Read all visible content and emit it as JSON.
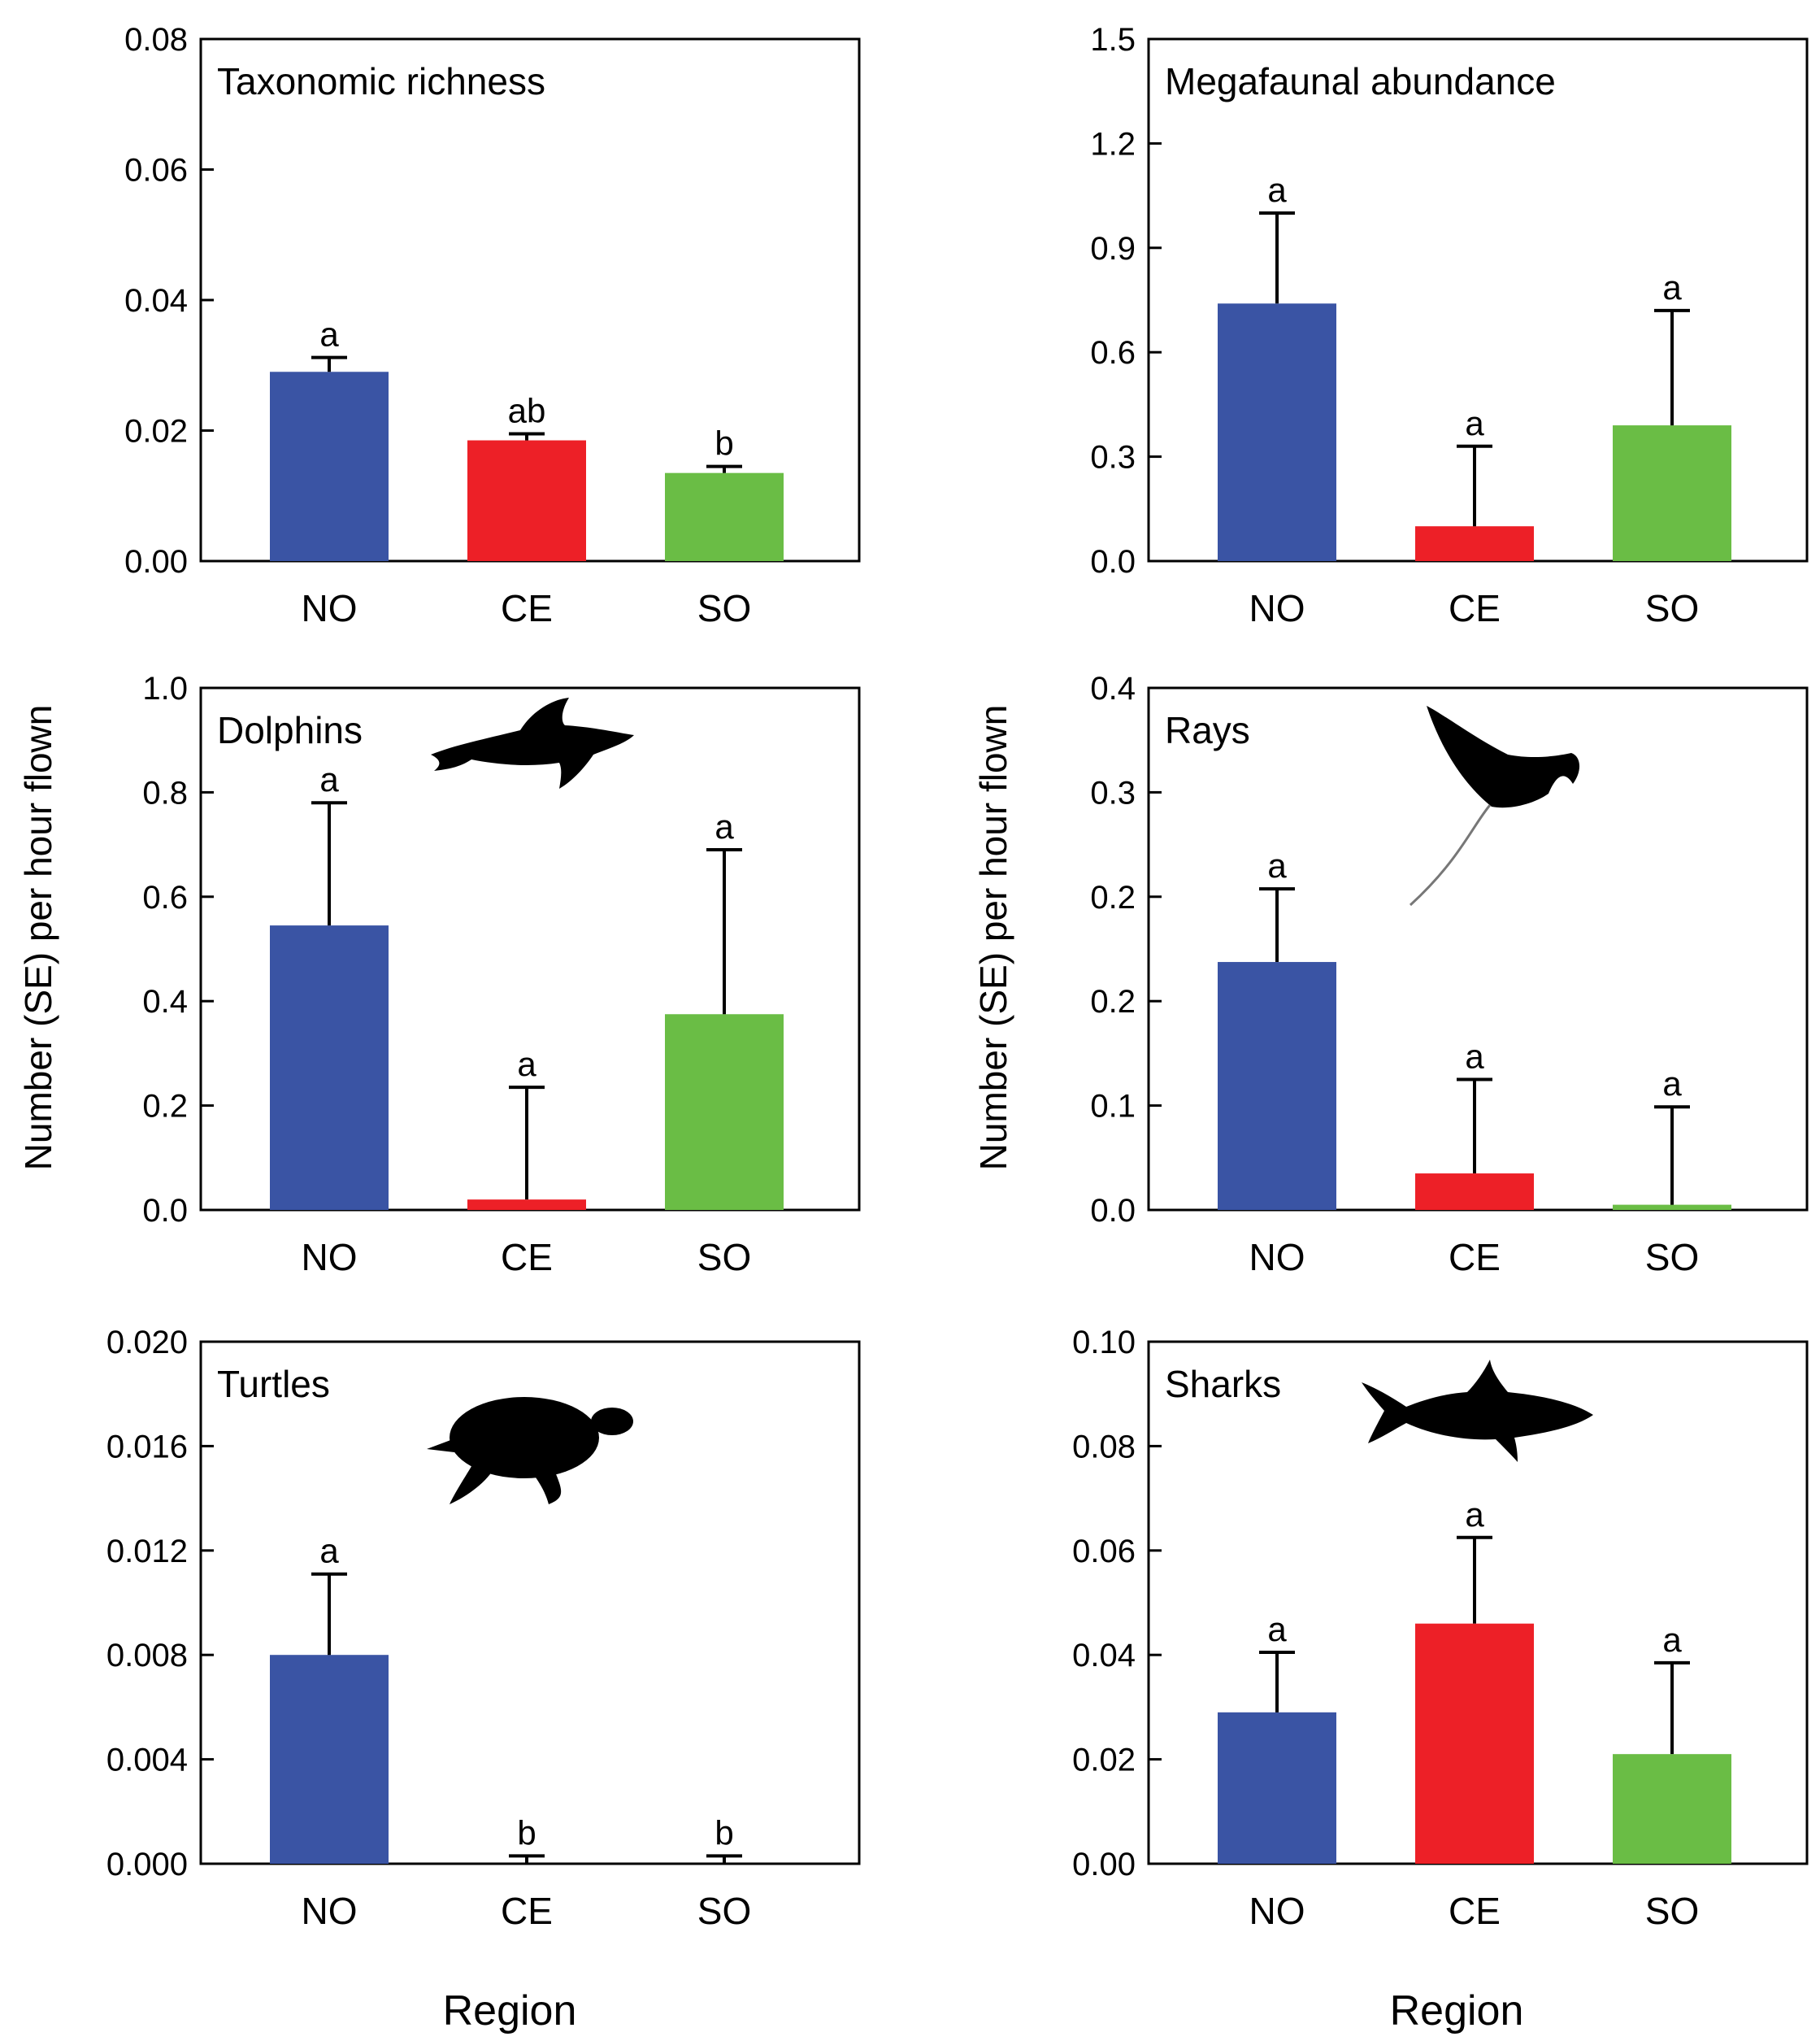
{
  "figure": {
    "y_axis_title": "Number (SE) per hour flown",
    "x_axis_title": "Region"
  },
  "colors": {
    "NO": "#3a54a4",
    "CE": "#ed2027",
    "SO": "#6abd45"
  },
  "chart_data": [
    {
      "type": "bar",
      "title": "Taxonomic richness",
      "categories": [
        "NO",
        "CE",
        "SO"
      ],
      "values": [
        0.029,
        0.0185,
        0.0135
      ],
      "error": [
        0.0022,
        0.001,
        0.001
      ],
      "significance": [
        "a",
        "ab",
        "b"
      ],
      "ylim": [
        0,
        0.08
      ],
      "yticks": [
        "0.00",
        "0.02",
        "0.04",
        "0.06",
        "0.08"
      ],
      "xlabel": "",
      "ylabel": "",
      "icon": ""
    },
    {
      "type": "bar",
      "title": "Megafaunal abundance",
      "categories": [
        "NO",
        "CE",
        "SO"
      ],
      "values": [
        0.74,
        0.1,
        0.39
      ],
      "error": [
        0.26,
        0.23,
        0.33
      ],
      "significance": [
        "a",
        "a",
        "a"
      ],
      "ylim": [
        0,
        1.5
      ],
      "yticks": [
        "0.0",
        "0.3",
        "0.6",
        "0.9",
        "1.2",
        "1.5"
      ],
      "xlabel": "",
      "ylabel": "",
      "icon": ""
    },
    {
      "type": "bar",
      "title": "Dolphins",
      "categories": [
        "NO",
        "CE",
        "SO"
      ],
      "values": [
        0.545,
        0.02,
        0.375
      ],
      "error": [
        0.235,
        0.215,
        0.315
      ],
      "significance": [
        "a",
        "a",
        "a"
      ],
      "ylim": [
        0,
        1.0
      ],
      "yticks": [
        "0.0",
        "0.2",
        "0.4",
        "0.6",
        "0.8",
        "1.0"
      ],
      "xlabel": "",
      "ylabel": "Number (SE) per hour flown",
      "icon": "dolphin-icon"
    },
    {
      "type": "bar",
      "title": "Rays",
      "categories": [
        "NO",
        "CE",
        "SO"
      ],
      "values": [
        0.19,
        0.028,
        0.004
      ],
      "error": [
        0.056,
        0.072,
        0.075
      ],
      "significance": [
        "a",
        "a",
        "a"
      ],
      "ylim": [
        0,
        0.4
      ],
      "yticks": [
        "0.0",
        "0.1",
        "0.2",
        "0.2",
        "0.3",
        "0.4"
      ],
      "xlabel": "",
      "ylabel": "Number (SE) per hour flown",
      "icon": "manta-ray-icon"
    },
    {
      "type": "bar",
      "title": "Turtles",
      "categories": [
        "NO",
        "CE",
        "SO"
      ],
      "values": [
        0.008,
        0,
        0
      ],
      "error": [
        0.0031,
        0.0003,
        0.0003
      ],
      "significance": [
        "a",
        "b",
        "b"
      ],
      "ylim": [
        0,
        0.02
      ],
      "yticks": [
        "0.000",
        "0.004",
        "0.008",
        "0.012",
        "0.016",
        "0.020"
      ],
      "xlabel": "Region",
      "ylabel": "",
      "icon": "sea-turtle-icon"
    },
    {
      "type": "bar",
      "title": "Sharks",
      "categories": [
        "NO",
        "CE",
        "SO"
      ],
      "values": [
        0.029,
        0.046,
        0.021
      ],
      "error": [
        0.0115,
        0.0165,
        0.0175
      ],
      "significance": [
        "a",
        "a",
        "a"
      ],
      "ylim": [
        0,
        0.1
      ],
      "yticks": [
        "0.00",
        "0.02",
        "0.04",
        "0.06",
        "0.08",
        "0.10"
      ],
      "xlabel": "Region",
      "ylabel": "",
      "icon": "shark-icon"
    }
  ]
}
